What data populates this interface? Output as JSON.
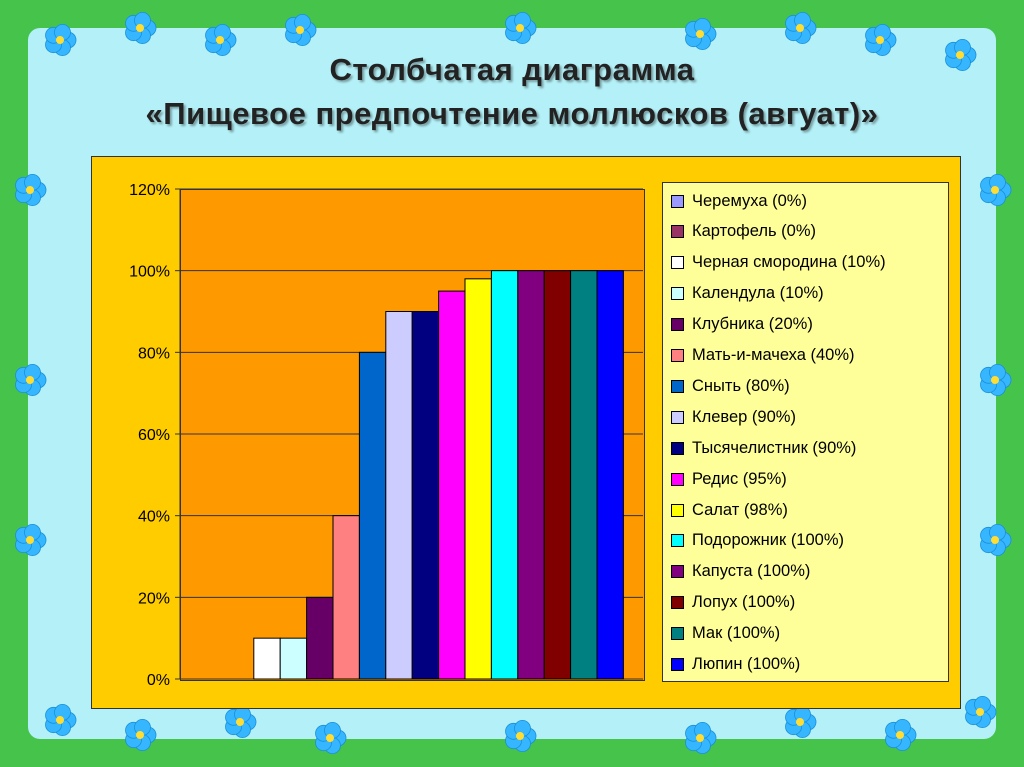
{
  "title_line1": "Столбчатая диаграмма",
  "title_line2": "«Пищевое предпочтение моллюсков (авгуат)»",
  "chart_data": {
    "type": "bar",
    "categories": [
      "Черемуха",
      "Картофель",
      "Черная смородина",
      "Календула",
      "Клубника",
      "Мать-и-мачеха",
      "Сныть",
      "Клевер",
      "Тысячелистник",
      "Редис",
      "Салат",
      "Подорожник",
      "Капуста",
      "Лопух",
      "Мак",
      "Люпин"
    ],
    "values": [
      0,
      0,
      10,
      10,
      20,
      40,
      80,
      90,
      90,
      95,
      98,
      100,
      100,
      100,
      100,
      100
    ],
    "colors": [
      "#9999ff",
      "#993366",
      "#ffffff",
      "#ccffff",
      "#660066",
      "#ff8080",
      "#0066cc",
      "#ccccff",
      "#000080",
      "#ff00ff",
      "#ffff00",
      "#00ffff",
      "#800080",
      "#800000",
      "#008080",
      "#0000ff"
    ],
    "legend_labels": [
      "Черемуха (0%)",
      "Картофель (0%)",
      "Черная смородина (10%)",
      "Календула (10%)",
      "Клубника (20%)",
      "Мать-и-мачеха (40%)",
      "Сныть (80%)",
      "Клевер (90%)",
      "Тысячелистник (90%)",
      "Редис (95%)",
      "Салат (98%)",
      "Подорожник (100%)",
      "Капуста (100%)",
      "Лопух (100%)",
      "Мак (100%)",
      "Люпин (100%)"
    ],
    "y_ticks": [
      "0%",
      "20%",
      "40%",
      "60%",
      "80%",
      "100%",
      "120%"
    ],
    "ylim": [
      0,
      120
    ],
    "grid": true,
    "legend_position": "right",
    "plot_background": "#ff9900",
    "chart_background": "#ffcc00"
  },
  "colors": {
    "frame": "#45c34b",
    "inner": "#b4f0f7",
    "flower": "#35b6ff"
  }
}
